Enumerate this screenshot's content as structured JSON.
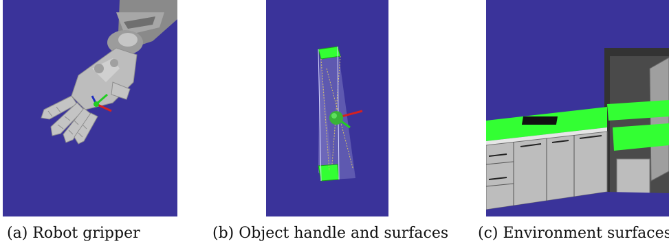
{
  "figure": {
    "panels": [
      {
        "label": "(a)",
        "caption": "Robot gripper"
      },
      {
        "label": "(b)",
        "caption": "Object handle and surfaces"
      },
      {
        "label": "(c)",
        "caption": "Environment surfaces"
      }
    ]
  },
  "colors": {
    "background": "#3a339a",
    "surface_highlight": "#33ff33",
    "gripper_gray": "#b9b9b9",
    "arm_dark": "#8a8a8a",
    "cabinet_gray": "#bdbdbd",
    "cabinet_dark": "#4a4a4a",
    "axis_x": "#d62020",
    "axis_y": "#22cc22",
    "axis_z": "#1f2fbf"
  }
}
